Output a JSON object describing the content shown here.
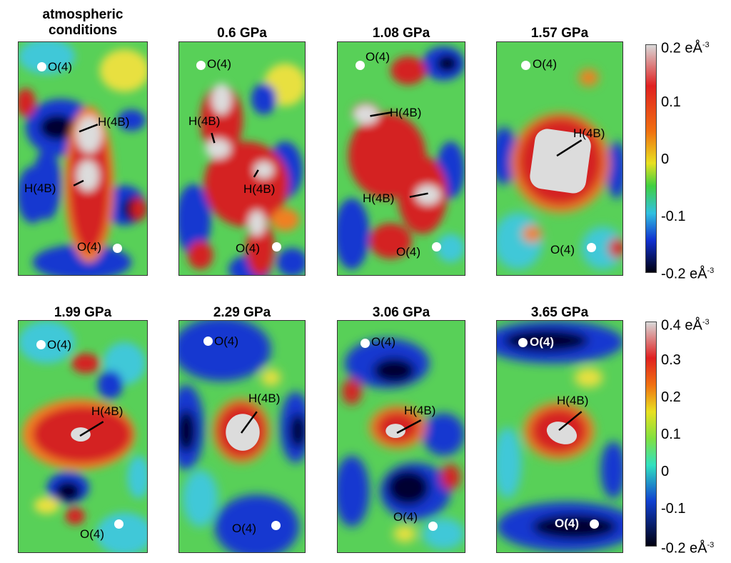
{
  "row1": {
    "panels": [
      {
        "title_l1": "atmospheric",
        "title_l2": "conditions",
        "labels": [
          {
            "text": "O(4)",
            "dot": "before"
          },
          {
            "text": "H(4B)"
          },
          {
            "text": "H(4B)"
          },
          {
            "text": "O(4)",
            "dot": "after"
          }
        ]
      },
      {
        "title_l1": "0.6 GPa",
        "labels": [
          {
            "text": "O(4)"
          },
          {
            "text": "H(4B)"
          },
          {
            "text": "H(4B)"
          },
          {
            "text": "O(4)"
          }
        ]
      },
      {
        "title_l1": "1.08 GPa",
        "labels": [
          {
            "text": "O(4)"
          },
          {
            "text": "H(4B)"
          },
          {
            "text": "H(4B)"
          },
          {
            "text": "O(4)"
          }
        ]
      },
      {
        "title_l1": "1.57 GPa",
        "labels": [
          {
            "text": "O(4)"
          },
          {
            "text": "H(4B)"
          },
          {
            "text": "O(4)"
          }
        ]
      }
    ],
    "colorbar": {
      "max": "0.2 eÅ",
      "max_exp": "-3",
      "ticks": [
        "0.1",
        "0",
        "-0.1"
      ],
      "min": "-0.2 eÅ",
      "min_exp": "-3"
    }
  },
  "row2": {
    "panels": [
      {
        "title_l1": "1.99 GPa",
        "labels": [
          {
            "text": "O(4)"
          },
          {
            "text": "H(4B)"
          },
          {
            "text": "O(4)"
          }
        ]
      },
      {
        "title_l1": "2.29 GPa",
        "labels": [
          {
            "text": "O(4)"
          },
          {
            "text": "H(4B)"
          },
          {
            "text": "O(4)"
          }
        ]
      },
      {
        "title_l1": "3.06 GPa",
        "labels": [
          {
            "text": "O(4)"
          },
          {
            "text": "H(4B)"
          },
          {
            "text": "O(4)"
          }
        ]
      },
      {
        "title_l1": "3.65 GPa",
        "labels": [
          {
            "text": "O(4)"
          },
          {
            "text": "H(4B)"
          },
          {
            "text": "O(4)"
          }
        ]
      }
    ],
    "colorbar": {
      "max": "0.4 eÅ",
      "max_exp": "-3",
      "ticks": [
        "0.3",
        "0.2",
        "0.1",
        "0",
        "-0.1"
      ],
      "min": "-0.2 eÅ",
      "min_exp": "-3"
    }
  },
  "colors": {
    "white_core": "#dcdcdc",
    "red": "#d42020",
    "orange": "#f08020",
    "yellow": "#e8e040",
    "green": "#58d058",
    "cyan": "#40c8d8",
    "blue": "#1838d0",
    "dark": "#000020"
  }
}
